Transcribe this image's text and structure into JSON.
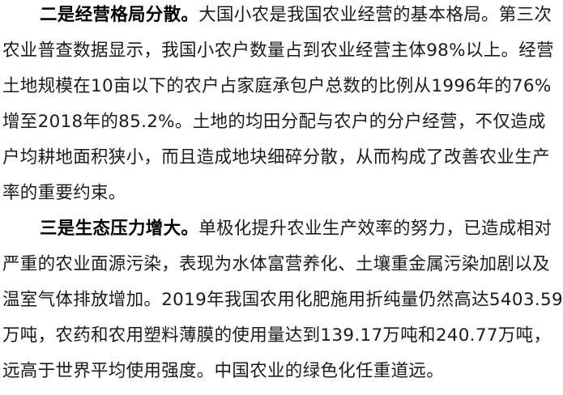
{
  "paragraphs": [
    {
      "lead": "二是经营格局分散。",
      "lines": [
        "大国小农是我国农业经营的基本格局。第三次",
        "农业普查数据显示，我国小农户数量占到农业经营主体98%以上。经营",
        "土地规模在10亩以下的农户占家庭承包户总数的比例从1996年的76%",
        "增至2018年的85.2%。土地的均田分配与农户的分户经营，不仅造成",
        "户均耕地面积狭小，而且造成地块细碎分散，从而构成了改善农业生产",
        "率的重要约束。"
      ]
    },
    {
      "lead": "三是生态压力增大。",
      "lines": [
        "单极化提升农业生产效率的努力，已造成相对",
        "严重的农业面源污染，表现为水体富营养化、土壤重金属污染加剧以及",
        "温室气体排放增加。2019年我国农用化肥施用折纯量仍然高达5403.59",
        "万吨，农药和农用塑料薄膜的使用量达到139.17万吨和240.77万吨，",
        "远高于世界平均使用强度。中国农业的绿色化任重道远。"
      ]
    }
  ]
}
